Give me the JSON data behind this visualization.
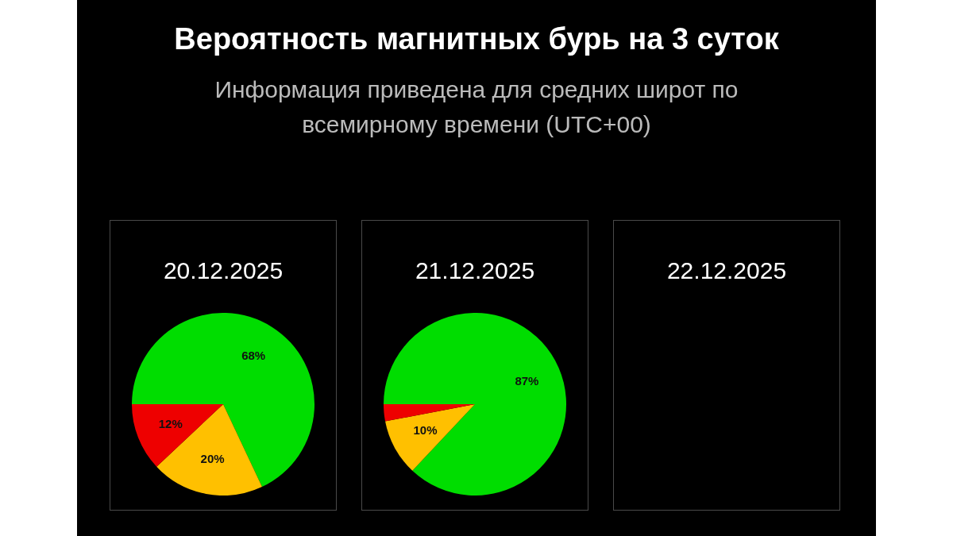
{
  "chart_data": [
    {
      "type": "other",
      "title": "Вероятность магнитных бурь на 3 суток",
      "subtitle": "Информация приведена для средних широт по всемирному времени (UTC+00)"
    },
    {
      "type": "pie",
      "title": "20.12.2025",
      "categories": [
        null,
        null,
        null
      ],
      "values": [
        68,
        20,
        12
      ],
      "colors": [
        "#00dd00",
        "#ffc000",
        "#ee0000"
      ],
      "value_labels": [
        "68%",
        "20%",
        "12%"
      ]
    },
    {
      "type": "pie",
      "title": "21.12.2025",
      "categories": [
        null,
        null,
        null
      ],
      "values": [
        87,
        10,
        3
      ],
      "colors": [
        "#00dd00",
        "#ffc000",
        "#ee0000"
      ],
      "value_labels": [
        "87%",
        "10%",
        null
      ]
    },
    {
      "type": "other",
      "title": "22.12.2025"
    }
  ]
}
